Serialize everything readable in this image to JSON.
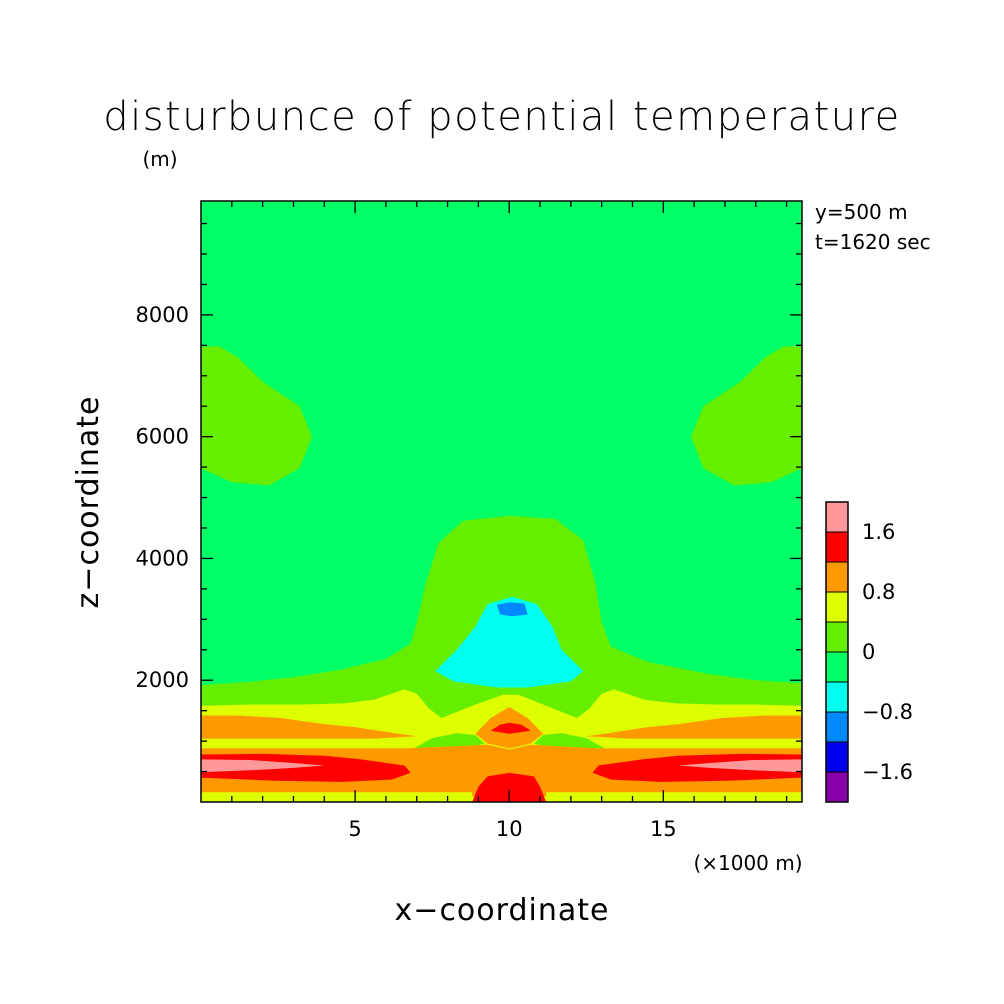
{
  "chart_data": {
    "type": "heatmap",
    "title": "disturbunce of potential temperature",
    "xlabel": "x−coordinate",
    "ylabel": "z−coordinate",
    "x_unit": "(×1000 m)",
    "y_unit": "(m)",
    "annotations": [
      "y=500 m",
      "t=1620 sec"
    ],
    "xlim": [
      0,
      19.5
    ],
    "ylim": [
      0,
      9870
    ],
    "x_ticks": [
      5,
      10,
      15
    ],
    "y_ticks": [
      2000,
      4000,
      6000,
      8000
    ],
    "legend_position": "right",
    "colorbar": {
      "labels": [
        "1.6",
        "0.8",
        "0",
        "−0.8",
        "−1.6"
      ],
      "label_values": [
        1.6,
        0.8,
        0,
        -0.8,
        -1.6
      ],
      "levels": [
        {
          "range": [
            1.6,
            2.0
          ],
          "color": "#ff9999"
        },
        {
          "range": [
            1.2,
            1.6
          ],
          "color": "#ff0000"
        },
        {
          "range": [
            0.8,
            1.2
          ],
          "color": "#ff9900"
        },
        {
          "range": [
            0.4,
            0.8
          ],
          "color": "#ddff00"
        },
        {
          "range": [
            0.0,
            0.4
          ],
          "color": "#66ee00"
        },
        {
          "range": [
            -0.4,
            0.0
          ],
          "color": "#00ff66"
        },
        {
          "range": [
            -0.8,
            -0.4
          ],
          "color": "#00ffee"
        },
        {
          "range": [
            -1.2,
            -0.8
          ],
          "color": "#0088ff"
        },
        {
          "range": [
            -1.6,
            -1.2
          ],
          "color": "#0000ee"
        },
        {
          "range": [
            -2.0,
            -1.6
          ],
          "color": "#8800aa"
        }
      ]
    },
    "background_value": -0.2,
    "regions": [
      {
        "name": "upper-left-warm-lobe",
        "value": 0.2,
        "points": [
          [
            0,
            5480
          ],
          [
            1.0,
            5250
          ],
          [
            2.2,
            5200
          ],
          [
            3.2,
            5480
          ],
          [
            3.6,
            6000
          ],
          [
            3.2,
            6500
          ],
          [
            2.0,
            6900
          ],
          [
            1.2,
            7300
          ],
          [
            0.6,
            7480
          ],
          [
            0,
            7480
          ]
        ]
      },
      {
        "name": "upper-right-warm-lobe",
        "value": 0.2,
        "points": [
          [
            19.5,
            5480
          ],
          [
            18.5,
            5250
          ],
          [
            17.3,
            5200
          ],
          [
            16.3,
            5480
          ],
          [
            15.9,
            6000
          ],
          [
            16.3,
            6500
          ],
          [
            17.5,
            6900
          ],
          [
            18.3,
            7300
          ],
          [
            18.9,
            7480
          ],
          [
            19.5,
            7480
          ]
        ]
      },
      {
        "name": "dome-and-lower-layer",
        "value": 0.2,
        "points": [
          [
            0,
            0
          ],
          [
            0,
            1920
          ],
          [
            1.5,
            1970
          ],
          [
            3.0,
            2050
          ],
          [
            4.5,
            2170
          ],
          [
            6.0,
            2350
          ],
          [
            6.8,
            2600
          ],
          [
            7.0,
            2950
          ],
          [
            7.3,
            3600
          ],
          [
            7.7,
            4250
          ],
          [
            8.5,
            4620
          ],
          [
            10.0,
            4700
          ],
          [
            11.5,
            4650
          ],
          [
            12.4,
            4300
          ],
          [
            12.8,
            3600
          ],
          [
            13.0,
            2950
          ],
          [
            13.3,
            2550
          ],
          [
            14.5,
            2300
          ],
          [
            16.5,
            2100
          ],
          [
            18.0,
            2000
          ],
          [
            19.5,
            1950
          ],
          [
            19.5,
            0
          ]
        ]
      },
      {
        "name": "cold-bubble",
        "value": -0.6,
        "points": [
          [
            7.6,
            2150
          ],
          [
            8.2,
            1980
          ],
          [
            9.6,
            1880
          ],
          [
            10.6,
            1880
          ],
          [
            12.0,
            1980
          ],
          [
            12.4,
            2150
          ],
          [
            11.7,
            2500
          ],
          [
            11.4,
            2880
          ],
          [
            10.9,
            3250
          ],
          [
            10.1,
            3370
          ],
          [
            9.3,
            3250
          ],
          [
            8.9,
            2880
          ],
          [
            8.3,
            2500
          ]
        ]
      },
      {
        "name": "cold-bubble-core",
        "value": -0.6,
        "points": [
          [
            7.9,
            2200
          ],
          [
            8.5,
            2070
          ],
          [
            9.7,
            2010
          ],
          [
            10.5,
            2010
          ],
          [
            11.8,
            2100
          ],
          [
            12.1,
            2220
          ],
          [
            11.5,
            2520
          ],
          [
            11.2,
            2900
          ],
          [
            10.7,
            3180
          ],
          [
            10.0,
            3260
          ],
          [
            9.4,
            3180
          ],
          [
            9.1,
            2900
          ],
          [
            8.4,
            2520
          ]
        ]
      },
      {
        "name": "cold-bubble-center",
        "value": -1.0,
        "points": [
          [
            9.7,
            3080
          ],
          [
            10.1,
            3050
          ],
          [
            10.6,
            3080
          ],
          [
            10.5,
            3260
          ],
          [
            10.0,
            3280
          ],
          [
            9.6,
            3240
          ]
        ]
      },
      {
        "name": "warm-band-lower",
        "value": 0.6,
        "points": [
          [
            0,
            0
          ],
          [
            0,
            1580
          ],
          [
            1.5,
            1600
          ],
          [
            3.2,
            1600
          ],
          [
            4.6,
            1620
          ],
          [
            5.6,
            1680
          ],
          [
            6.6,
            1850
          ],
          [
            7.0,
            1780
          ],
          [
            7.4,
            1530
          ],
          [
            7.8,
            1380
          ],
          [
            8.8,
            1580
          ],
          [
            9.8,
            1760
          ],
          [
            10.3,
            1760
          ],
          [
            11.2,
            1580
          ],
          [
            12.2,
            1380
          ],
          [
            12.6,
            1530
          ],
          [
            13.0,
            1780
          ],
          [
            13.4,
            1850
          ],
          [
            14.4,
            1680
          ],
          [
            15.4,
            1620
          ],
          [
            16.8,
            1600
          ],
          [
            18.0,
            1600
          ],
          [
            19.5,
            1580
          ],
          [
            19.5,
            0
          ]
        ]
      },
      {
        "name": "green-patch-left",
        "value": 0.2,
        "points": [
          [
            6.9,
            880
          ],
          [
            7.5,
            1050
          ],
          [
            8.3,
            1130
          ],
          [
            8.9,
            1100
          ],
          [
            9.2,
            960
          ],
          [
            8.6,
            880
          ]
        ]
      },
      {
        "name": "green-patch-right",
        "value": 0.2,
        "points": [
          [
            13.1,
            880
          ],
          [
            12.5,
            1050
          ],
          [
            11.7,
            1130
          ],
          [
            11.1,
            1100
          ],
          [
            10.8,
            960
          ],
          [
            11.4,
            880
          ]
        ]
      },
      {
        "name": "orange-band-upper",
        "value": 1.0,
        "points": [
          [
            0,
            1040
          ],
          [
            0,
            1420
          ],
          [
            1.2,
            1420
          ],
          [
            2.6,
            1380
          ],
          [
            4.0,
            1280
          ],
          [
            5.0,
            1230
          ],
          [
            6.3,
            1130
          ],
          [
            7.0,
            1080
          ],
          [
            5.6,
            1040
          ]
        ]
      },
      {
        "name": "orange-band-upper-right",
        "value": 1.0,
        "points": [
          [
            19.5,
            1040
          ],
          [
            19.5,
            1420
          ],
          [
            18.3,
            1420
          ],
          [
            16.9,
            1380
          ],
          [
            15.5,
            1280
          ],
          [
            14.5,
            1230
          ],
          [
            13.2,
            1130
          ],
          [
            12.5,
            1080
          ],
          [
            13.9,
            1040
          ]
        ]
      },
      {
        "name": "orange-diamond",
        "value": 1.0,
        "points": [
          [
            8.9,
            1120
          ],
          [
            9.4,
            1380
          ],
          [
            10.0,
            1560
          ],
          [
            10.6,
            1380
          ],
          [
            11.1,
            1120
          ],
          [
            10.7,
            960
          ],
          [
            10.0,
            880
          ],
          [
            9.3,
            960
          ]
        ]
      },
      {
        "name": "orange-bottom",
        "value": 1.0,
        "points": [
          [
            0,
            90
          ],
          [
            0,
            880
          ],
          [
            6.6,
            880
          ],
          [
            9.3,
            940
          ],
          [
            10.0,
            860
          ],
          [
            10.7,
            940
          ],
          [
            12.9,
            880
          ],
          [
            19.5,
            880
          ],
          [
            19.5,
            90
          ]
        ]
      },
      {
        "name": "red-center-blob",
        "value": 1.4,
        "points": [
          [
            9.4,
            1170
          ],
          [
            9.7,
            1270
          ],
          [
            10.0,
            1300
          ],
          [
            10.4,
            1270
          ],
          [
            10.7,
            1170
          ],
          [
            10.0,
            1120
          ]
        ]
      },
      {
        "name": "red-left-band",
        "value": 1.4,
        "points": [
          [
            0,
            400
          ],
          [
            0,
            780
          ],
          [
            2.0,
            790
          ],
          [
            4.0,
            760
          ],
          [
            5.2,
            700
          ],
          [
            6.6,
            600
          ],
          [
            6.8,
            480
          ],
          [
            6.2,
            370
          ],
          [
            4.6,
            330
          ],
          [
            2.4,
            350
          ]
        ]
      },
      {
        "name": "red-right-band",
        "value": 1.4,
        "points": [
          [
            19.5,
            400
          ],
          [
            19.5,
            780
          ],
          [
            17.5,
            790
          ],
          [
            15.5,
            760
          ],
          [
            14.3,
            700
          ],
          [
            12.9,
            600
          ],
          [
            12.7,
            480
          ],
          [
            13.3,
            370
          ],
          [
            14.9,
            330
          ],
          [
            17.1,
            350
          ]
        ]
      },
      {
        "name": "red-bottom-center",
        "value": 1.4,
        "points": [
          [
            8.8,
            0
          ],
          [
            9.0,
            250
          ],
          [
            9.3,
            420
          ],
          [
            10.0,
            480
          ],
          [
            10.8,
            420
          ],
          [
            11.0,
            250
          ],
          [
            11.2,
            0
          ]
        ]
      },
      {
        "name": "pink-left",
        "value": 1.8,
        "points": [
          [
            0,
            490
          ],
          [
            0,
            700
          ],
          [
            1.6,
            690
          ],
          [
            3.0,
            640
          ],
          [
            4.0,
            600
          ],
          [
            3.0,
            560
          ],
          [
            1.6,
            520
          ]
        ]
      },
      {
        "name": "pink-right",
        "value": 1.8,
        "points": [
          [
            19.5,
            490
          ],
          [
            19.5,
            700
          ],
          [
            17.9,
            690
          ],
          [
            16.5,
            640
          ],
          [
            15.5,
            600
          ],
          [
            16.5,
            560
          ],
          [
            17.9,
            520
          ]
        ]
      },
      {
        "name": "yellow-bottom-strip",
        "value": 0.6,
        "points": [
          [
            0,
            0
          ],
          [
            0,
            160
          ],
          [
            8.8,
            160
          ],
          [
            8.8,
            0
          ]
        ]
      },
      {
        "name": "yellow-bottom-strip-right",
        "value": 0.6,
        "points": [
          [
            11.2,
            0
          ],
          [
            11.2,
            160
          ],
          [
            19.5,
            160
          ],
          [
            19.5,
            0
          ]
        ]
      }
    ]
  }
}
